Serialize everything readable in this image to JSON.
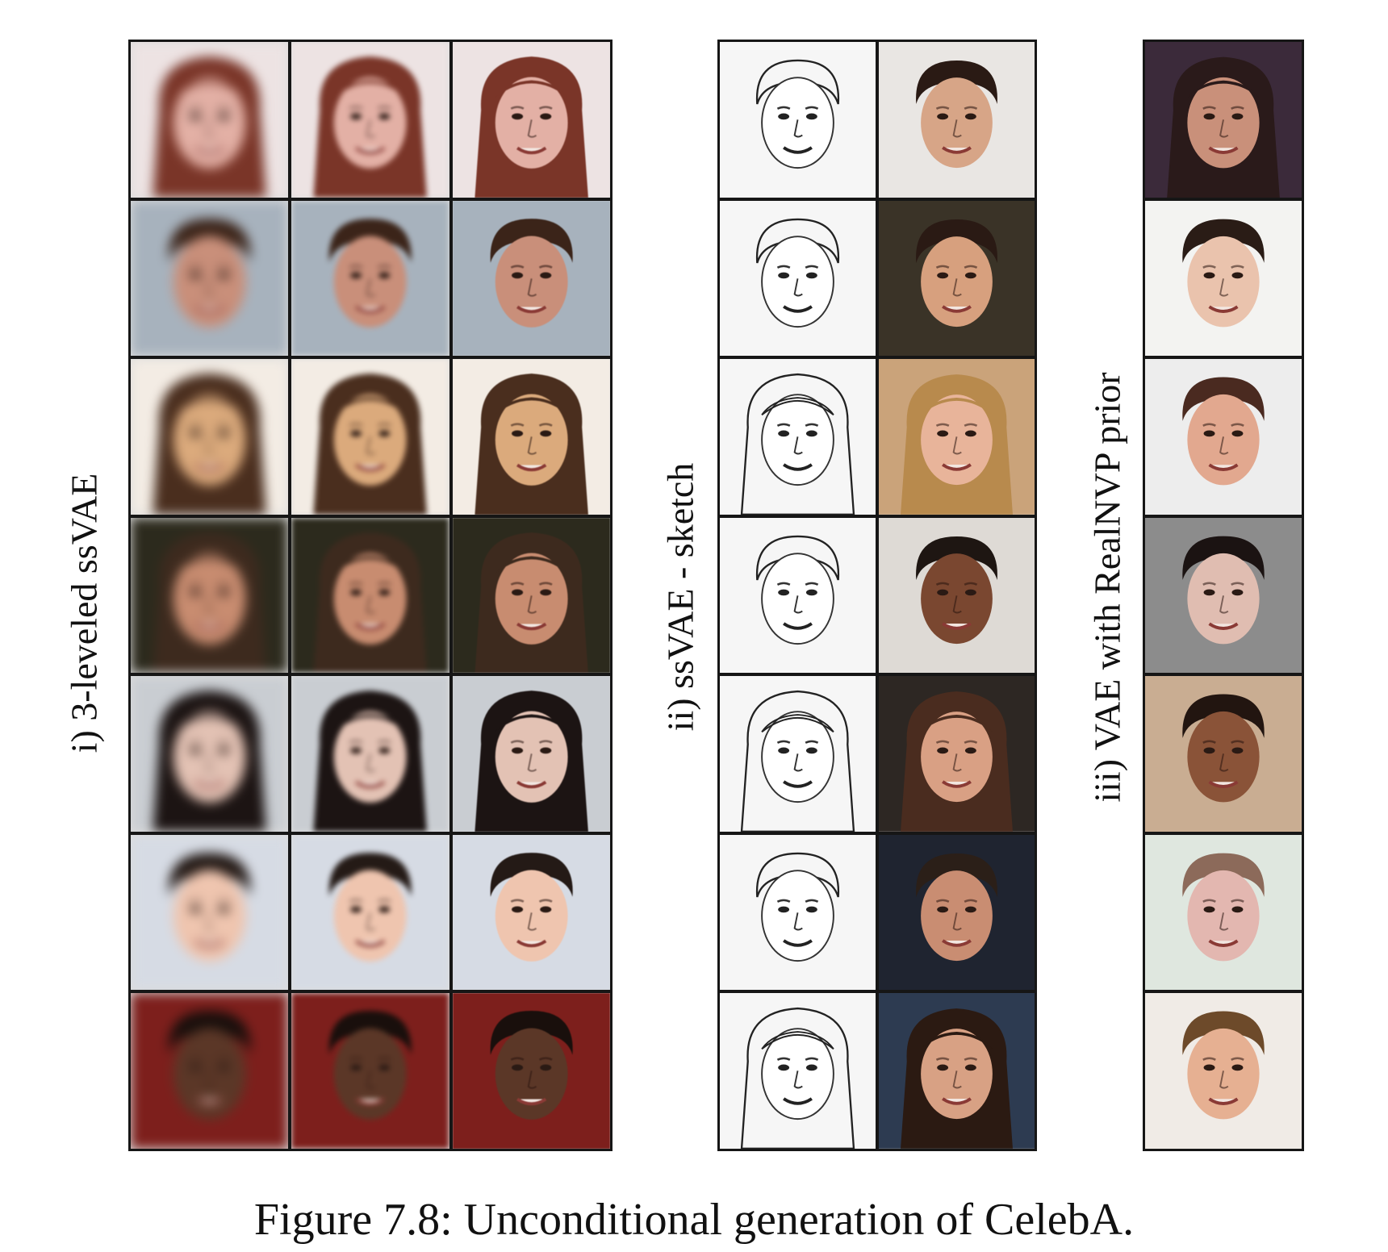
{
  "figure": {
    "caption": "Figure 7.8: Unconditional generation of CelebA."
  },
  "panels": [
    {
      "label": "i) 3-leveled ssVAE",
      "columns": 3,
      "rows": [
        {
          "bg": "#ede3e3",
          "skin": "#e3b0a5",
          "hair": "#7a3528",
          "hair_style": "long"
        },
        {
          "bg": "#a7b2bd",
          "skin": "#c98f7a",
          "hair": "#3b2419",
          "hair_style": "short"
        },
        {
          "bg": "#f3ece4",
          "skin": "#dbaa7c",
          "hair": "#4a2e1e",
          "hair_style": "long"
        },
        {
          "bg": "#2c2a1d",
          "skin": "#c88c70",
          "hair": "#3d2a1e",
          "hair_style": "long"
        },
        {
          "bg": "#c9cdd2",
          "skin": "#e3c2b4",
          "hair": "#1c1413",
          "hair_style": "long"
        },
        {
          "bg": "#d6dbe4",
          "skin": "#efc5af",
          "hair": "#241a16",
          "hair_style": "short"
        },
        {
          "bg": "#7d1f1c",
          "skin": "#5b3727",
          "hair": "#190f0c",
          "hair_style": "short"
        }
      ]
    },
    {
      "label": "ii) ssVAE - sketch",
      "columns": 2,
      "rows": [
        {
          "bg": "#e9e6e3",
          "skin": "#d7a587",
          "hair": "#2a1a14",
          "hair_style": "short"
        },
        {
          "bg": "#3a3327",
          "skin": "#d7a07e",
          "hair": "#2a1a14",
          "hair_style": "short"
        },
        {
          "bg": "#caa37a",
          "skin": "#e8b49a",
          "hair": "#b88a4d",
          "hair_style": "long"
        },
        {
          "bg": "#dedad5",
          "skin": "#7a4730",
          "hair": "#1e1612",
          "hair_style": "short"
        },
        {
          "bg": "#2d2723",
          "skin": "#d9a084",
          "hair": "#4a2c1f",
          "hair_style": "long"
        },
        {
          "bg": "#1f2430",
          "skin": "#c98d72",
          "hair": "#2b1f18",
          "hair_style": "short"
        },
        {
          "bg": "#2d3b51",
          "skin": "#d8a184",
          "hair": "#2b1a12",
          "hair_style": "long"
        }
      ]
    },
    {
      "label": "iii) VAE with RealNVP prior",
      "columns": 1,
      "rows": [
        {
          "bg": "#3b2a3a",
          "skin": "#c9907a",
          "hair": "#2a1a1a",
          "hair_style": "long"
        },
        {
          "bg": "#f3f3f1",
          "skin": "#eac3ad",
          "hair": "#2a1c16",
          "hair_style": "short"
        },
        {
          "bg": "#ededed",
          "skin": "#e2a88f",
          "hair": "#4a2a20",
          "hair_style": "short"
        },
        {
          "bg": "#8c8c8c",
          "skin": "#e0bdb1",
          "hair": "#1b1312",
          "hair_style": "short"
        },
        {
          "bg": "#c9ad92",
          "skin": "#8a5338",
          "hair": "#221510",
          "hair_style": "short"
        },
        {
          "bg": "#dfe7df",
          "skin": "#e3b7b0",
          "hair": "#8c6a5a",
          "hair_style": "short"
        },
        {
          "bg": "#f0ebe6",
          "skin": "#e6b092",
          "hair": "#6d4a2a",
          "hair_style": "short"
        }
      ]
    }
  ]
}
